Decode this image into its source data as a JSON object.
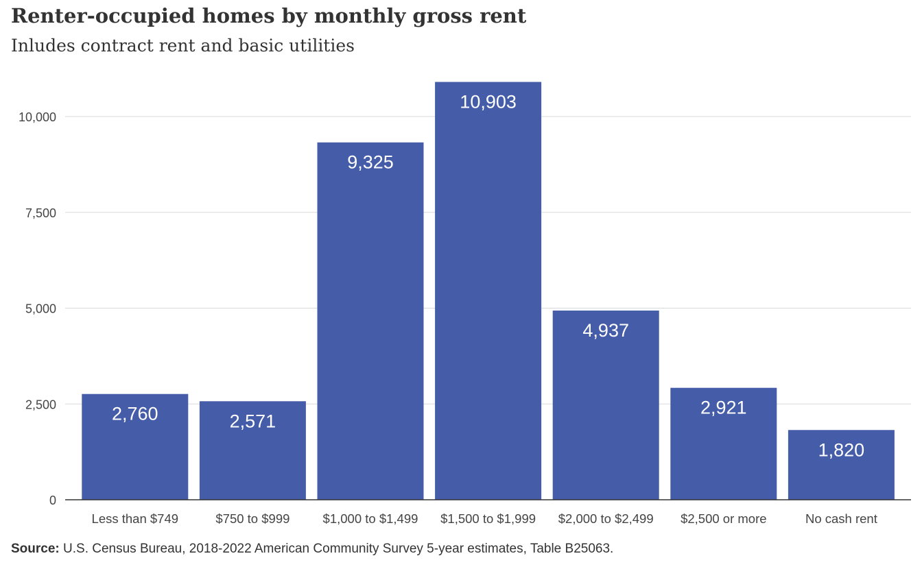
{
  "chart_data": {
    "type": "bar",
    "title": "Renter-occupied  homes by monthly gross rent",
    "subtitle": "Inludes contract rent and basic utilities",
    "categories": [
      "Less than $749",
      "$750 to $999",
      "$1,000 to $1,499",
      "$1,500 to $1,999",
      "$2,000 to $2,499",
      "$2,500 or more",
      "No cash rent"
    ],
    "values": [
      2760,
      2571,
      9325,
      10903,
      4937,
      2921,
      1820
    ],
    "value_labels": [
      "2,760",
      "2,571",
      "9,325",
      "10,903",
      "4,937",
      "2,921",
      "1,820"
    ],
    "yticks": [
      0,
      2500,
      5000,
      7500,
      10000
    ],
    "ytick_labels": [
      "0",
      "2,500",
      "5,000",
      "7,500",
      "10,000"
    ],
    "ylim": [
      0,
      11000
    ],
    "grid": true,
    "bar_color": "#455ca8",
    "grid_color": "#d9d9d9",
    "axis_color": "#333333"
  },
  "source": {
    "label": "Source:",
    "text": " U.S. Census Bureau,  2018-2022  American Community Survey 5-year estimates, Table B25063."
  }
}
